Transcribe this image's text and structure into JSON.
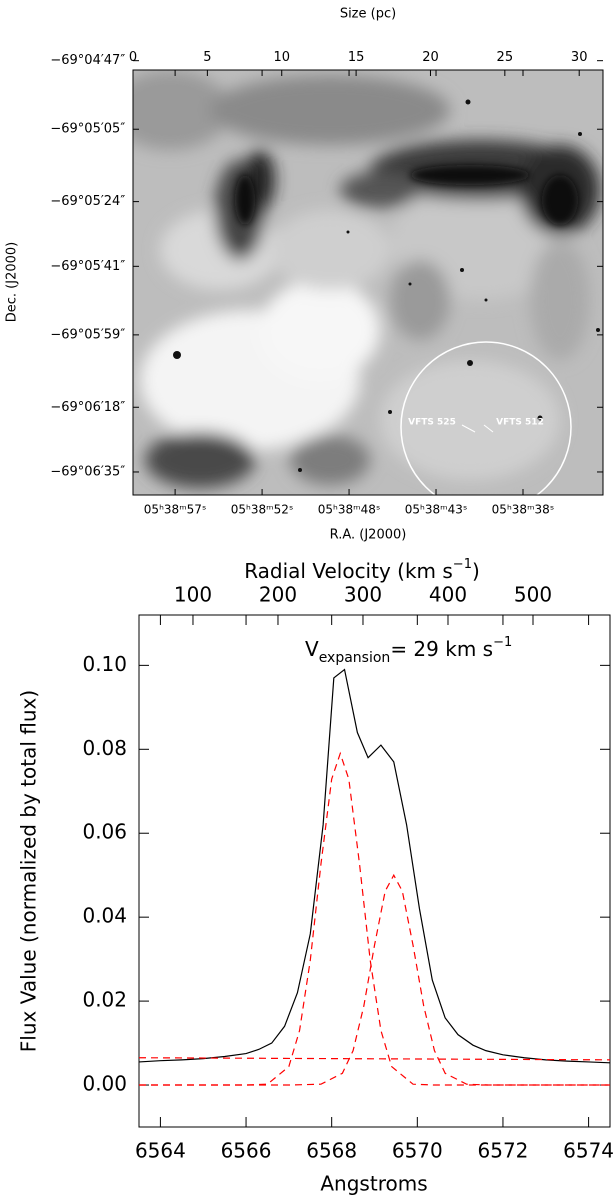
{
  "chart_data": [
    {
      "type": "image",
      "x2label": "Size (pc)",
      "x2lim": [
        0,
        31.6
      ],
      "x2ticks": [
        0,
        5,
        10,
        15,
        20,
        25,
        30
      ],
      "ylabel": "Dec. (J2000)",
      "ylim": [
        -69.1114,
        -69.0804
      ],
      "yticks": [
        {
          "value": -69.07972,
          "label": "−69°04′47″"
        },
        {
          "value": -69.08472,
          "label": "−69°05′05″"
        },
        {
          "value": -69.09,
          "label": "−69°05′24″"
        },
        {
          "value": -69.09472,
          "label": "−69°05′41″"
        },
        {
          "value": -69.09972,
          "label": "−69°05′59″"
        },
        {
          "value": -69.105,
          "label": "−69°06′18″"
        },
        {
          "value": -69.10972,
          "label": "−69°06′35″"
        }
      ],
      "xlabel": "R.A. (J2000)",
      "xlim": [
        59.4,
        33.73
      ],
      "xticks": [
        {
          "value": 57.1,
          "label": "05ʰ38ᵐ57ˢ"
        },
        {
          "value": 52.35,
          "label": "05ʰ38ᵐ52ˢ"
        },
        {
          "value": 47.6,
          "label": "05ʰ38ᵐ48ˢ"
        },
        {
          "value": 42.85,
          "label": "05ʰ38ᵐ43ˢ"
        },
        {
          "value": 38.1,
          "label": "05ʰ38ᵐ38ˢ"
        }
      ],
      "annotations": [
        "VFTS 525",
        "VFTS 512"
      ]
    },
    {
      "type": "line",
      "xlabel": "Angstroms",
      "ylabel": "Flux Value (normalized by total flux)",
      "x2label": {
        "text": "Radial Velocity (km s",
        "sup": "−1",
        "end": ")"
      },
      "annotation": {
        "text": "V",
        "sub": "expansion",
        "rest": "= 29 km s",
        "sup": "−1"
      },
      "xlim": [
        6563.5,
        6574.5
      ],
      "xticks": [
        6564,
        6566,
        6568,
        6570,
        6572,
        6574
      ],
      "x2lim": [
        36.5,
        590.6
      ],
      "x2ticks": [
        100,
        200,
        300,
        400,
        500
      ],
      "ylim": [
        -0.01,
        0.112
      ],
      "yticks": [
        {
          "value": 0,
          "label": "0.00"
        },
        {
          "value": 0.02,
          "label": "0.02"
        },
        {
          "value": 0.04,
          "label": "0.04"
        },
        {
          "value": 0.06,
          "label": "0.06"
        },
        {
          "value": 0.08,
          "label": "0.08"
        },
        {
          "value": 0.1,
          "label": "0.10"
        }
      ],
      "series": [
        {
          "color": "#000000",
          "dashed": false,
          "x": [
            6563.5,
            6564,
            6564.5,
            6565,
            6565.5,
            6566,
            6566.3,
            6566.6,
            6566.9,
            6567.2,
            6567.5,
            6567.8,
            6568.05,
            6568.3,
            6568.6,
            6568.85,
            6569.15,
            6569.45,
            6569.75,
            6570.05,
            6570.35,
            6570.65,
            6570.95,
            6571.3,
            6571.6,
            6572,
            6572.5,
            6573,
            6573.5,
            6574,
            6574.5
          ],
          "values": [
            0.0055,
            0.0058,
            0.006,
            0.0063,
            0.0068,
            0.0075,
            0.0085,
            0.01,
            0.014,
            0.022,
            0.036,
            0.062,
            0.097,
            0.099,
            0.084,
            0.078,
            0.081,
            0.077,
            0.062,
            0.042,
            0.025,
            0.016,
            0.012,
            0.0095,
            0.0082,
            0.0072,
            0.0065,
            0.006,
            0.0057,
            0.0055,
            0.0053
          ]
        },
        {
          "color": "#ff0000",
          "dashed": true,
          "x": [
            6563.5,
            6566,
            6566.5,
            6567,
            6567.25,
            6567.5,
            6567.75,
            6568,
            6568.2,
            6568.4,
            6568.65,
            6568.9,
            6569.15,
            6569.4,
            6569.9,
            6570.4,
            6574.5
          ],
          "values": [
            0,
            0,
            0.0002,
            0.0044,
            0.013,
            0.0297,
            0.0527,
            0.0729,
            0.079,
            0.0729,
            0.0527,
            0.0297,
            0.013,
            0.0044,
            0.0002,
            0,
            0
          ]
        },
        {
          "color": "#ff0000",
          "dashed": true,
          "x": [
            6563.5,
            6567,
            6567.75,
            6568.25,
            6568.5,
            6568.75,
            6569,
            6569.25,
            6569.45,
            6569.65,
            6569.9,
            6570.15,
            6570.4,
            6570.65,
            6571.15,
            6571.65,
            6574.5
          ],
          "values": [
            0,
            0,
            0.0002,
            0.0028,
            0.0082,
            0.0188,
            0.0333,
            0.0462,
            0.05,
            0.0462,
            0.0333,
            0.0188,
            0.0082,
            0.0028,
            0.0002,
            0,
            0
          ]
        },
        {
          "color": "#ff0000",
          "dashed": true,
          "x": [
            6563.5,
            6574.5
          ],
          "values": [
            0.0065,
            0.006
          ]
        }
      ]
    }
  ]
}
